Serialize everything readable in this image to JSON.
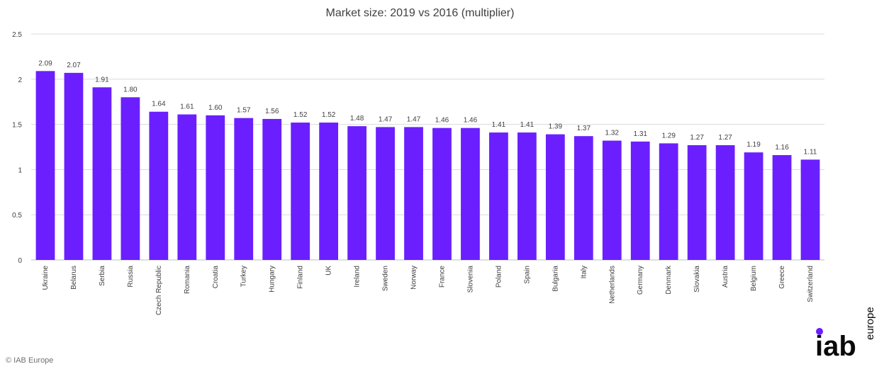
{
  "chart_data": {
    "type": "bar",
    "title": "Market size: 2019 vs 2016 (multiplier)",
    "xlabel": "",
    "ylabel": "",
    "ylim": [
      0,
      2.5
    ],
    "yticks": [
      "0",
      "0.5",
      "1",
      "1.5",
      "2",
      "2.5"
    ],
    "ytick_values": [
      0,
      0.5,
      1,
      1.5,
      2,
      2.5
    ],
    "grid": true,
    "legend": "none",
    "bar_color": "#6B1FFF",
    "categories": [
      "Ukraine",
      "Belarus",
      "Serbia",
      "Russia",
      "Czech Republic",
      "Romania",
      "Croatia",
      "Turkey",
      "Hungary",
      "Finland",
      "UK",
      "Ireland",
      "Sweden",
      "Norway",
      "France",
      "Slovenia",
      "Poland",
      "Spain",
      "Bulgaria",
      "Italy",
      "Netherlands",
      "Germany",
      "Denmark",
      "Slovakia",
      "Austria",
      "Belgium",
      "Greece",
      "Switzerland"
    ],
    "values": [
      2.09,
      2.07,
      1.91,
      1.8,
      1.64,
      1.61,
      1.6,
      1.57,
      1.56,
      1.52,
      1.52,
      1.48,
      1.47,
      1.47,
      1.46,
      1.46,
      1.41,
      1.41,
      1.39,
      1.37,
      1.32,
      1.31,
      1.29,
      1.27,
      1.27,
      1.19,
      1.16,
      1.11
    ],
    "data_labels": [
      "2.09",
      "2.07",
      "1.91",
      "1.80",
      "1.64",
      "1.61",
      "1.60",
      "1.57",
      "1.56",
      "1.52",
      "1.52",
      "1.48",
      "1.47",
      "1.47",
      "1.46",
      "1.46",
      "1.41",
      "1.41",
      "1.39",
      "1.37",
      "1.32",
      "1.31",
      "1.29",
      "1.27",
      "1.27",
      "1.19",
      "1.16",
      "1.11"
    ]
  },
  "footer": {
    "copyright": "© IAB Europe"
  },
  "logo": {
    "main": "iab",
    "sub": "europe",
    "color": "#0a0a0a",
    "dot_color": "#6B1FFF"
  }
}
